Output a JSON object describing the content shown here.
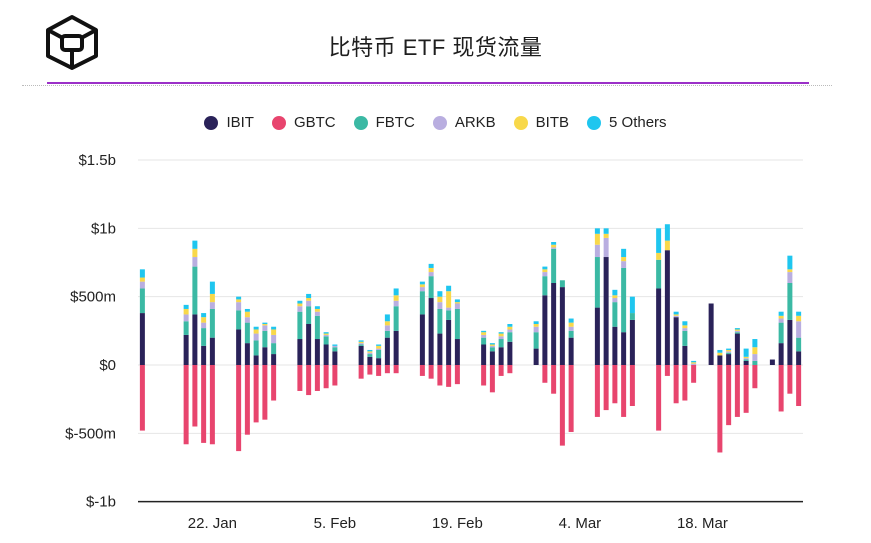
{
  "header": {
    "title": "比特币 ETF 现货流量",
    "logo_icon": "cube-logo-icon"
  },
  "colors": {
    "IBIT": "#2a2259",
    "GBTC": "#e8456e",
    "FBTC": "#3bb9a4",
    "ARKB": "#b9aee0",
    "BITB": "#f8d84a",
    "5 Others": "#1fc6ef",
    "accent_rule": "#9b30c8"
  },
  "chart_data": {
    "type": "bar",
    "stacked": true,
    "title": "比特币 ETF 现货流量",
    "unit": "USD",
    "ylim": [
      -1000000000,
      1500000000
    ],
    "y_ticks": [
      {
        "value": 1500000000,
        "label": "$1.5b"
      },
      {
        "value": 1000000000,
        "label": "$1b"
      },
      {
        "value": 500000000,
        "label": "$500m"
      },
      {
        "value": 0,
        "label": "$0"
      },
      {
        "value": -500000000,
        "label": "$-500m"
      },
      {
        "value": -1000000000,
        "label": "$-1b"
      }
    ],
    "x_ticks": [
      {
        "label": "22. Jan",
        "at": 8
      },
      {
        "label": "5. Feb",
        "at": 22
      },
      {
        "label": "19. Feb",
        "at": 36
      },
      {
        "label": "4. Mar",
        "at": 50
      },
      {
        "label": "18. Mar",
        "at": 64
      }
    ],
    "grid": true,
    "legend_position": "top",
    "series": [
      {
        "name": "IBIT",
        "values": [
          380,
          null,
          null,
          null,
          null,
          220,
          370,
          140,
          200,
          null,
          null,
          260,
          160,
          70,
          130,
          80,
          null,
          null,
          190,
          300,
          190,
          150,
          100,
          null,
          null,
          140,
          60,
          50,
          200,
          250,
          null,
          null,
          370,
          490,
          230,
          330,
          190,
          null,
          null,
          150,
          100,
          130,
          170,
          null,
          null,
          120,
          510,
          600,
          570,
          200,
          null,
          null,
          420,
          790,
          280,
          240,
          330,
          null,
          null,
          560,
          840,
          350,
          140,
          null,
          null,
          450,
          70,
          80,
          230,
          30,
          null,
          null,
          40,
          160,
          330,
          100
        ]
      },
      {
        "name": "GBTC",
        "values": [
          -480,
          null,
          null,
          null,
          null,
          -580,
          -450,
          -570,
          -580,
          null,
          null,
          -630,
          -510,
          -420,
          -400,
          -260,
          null,
          null,
          -190,
          -220,
          -190,
          -170,
          -150,
          null,
          null,
          -100,
          -70,
          -80,
          -60,
          -60,
          null,
          null,
          -80,
          -100,
          -150,
          -160,
          -140,
          null,
          null,
          -150,
          -200,
          -80,
          -60,
          null,
          null,
          0,
          -130,
          -210,
          -590,
          -490,
          null,
          null,
          -380,
          -330,
          -280,
          -380,
          -300,
          null,
          null,
          -480,
          -80,
          -280,
          -260,
          -130,
          null,
          null,
          -640,
          -440,
          -380,
          -350,
          -170,
          null,
          null,
          -340,
          -210,
          -300,
          -100
        ]
      },
      {
        "name": "FBTC",
        "values": [
          180,
          null,
          null,
          null,
          null,
          100,
          350,
          130,
          210,
          null,
          null,
          140,
          150,
          110,
          120,
          80,
          null,
          null,
          200,
          130,
          170,
          60,
          30,
          null,
          null,
          10,
          20,
          60,
          50,
          180,
          null,
          null,
          170,
          160,
          180,
          70,
          220,
          null,
          null,
          50,
          30,
          60,
          70,
          null,
          null,
          120,
          140,
          250,
          50,
          50,
          null,
          null,
          370,
          0,
          180,
          470,
          50,
          null,
          null,
          210,
          0,
          0,
          110,
          0,
          null,
          null,
          0,
          10,
          10,
          10,
          30,
          null,
          null,
          150,
          270,
          100,
          60
        ]
      },
      {
        "name": "ARKB",
        "values": [
          50,
          null,
          null,
          null,
          null,
          50,
          70,
          40,
          50,
          null,
          null,
          60,
          40,
          50,
          40,
          60,
          null,
          null,
          40,
          40,
          30,
          10,
          10,
          null,
          null,
          10,
          10,
          10,
          40,
          40,
          null,
          null,
          30,
          30,
          50,
          20,
          40,
          null,
          null,
          20,
          10,
          20,
          20,
          null,
          null,
          40,
          30,
          10,
          0,
          30,
          null,
          null,
          90,
          140,
          30,
          50,
          0,
          null,
          null,
          0,
          0,
          10,
          20,
          10,
          null,
          null,
          0,
          10,
          10,
          10,
          50,
          null,
          null,
          30,
          80,
          120,
          60
        ]
      },
      {
        "name": "BITB",
        "values": [
          30,
          null,
          null,
          null,
          null,
          40,
          60,
          40,
          60,
          null,
          null,
          20,
          40,
          30,
          10,
          40,
          null,
          null,
          20,
          20,
          20,
          10,
          0,
          null,
          null,
          10,
          10,
          20,
          30,
          40,
          null,
          null,
          20,
          30,
          40,
          120,
          10,
          null,
          null,
          20,
          10,
          20,
          20,
          null,
          null,
          20,
          20,
          20,
          0,
          30,
          null,
          null,
          80,
          30,
          20,
          30,
          0,
          null,
          null,
          50,
          70,
          10,
          20,
          10,
          null,
          null,
          20,
          10,
          10,
          10,
          50,
          null,
          null,
          20,
          20,
          40,
          60
        ]
      },
      {
        "name": "5 Others",
        "values": [
          60,
          null,
          null,
          null,
          null,
          30,
          60,
          30,
          90,
          null,
          null,
          20,
          20,
          20,
          10,
          20,
          null,
          null,
          20,
          30,
          20,
          10,
          10,
          null,
          null,
          10,
          10,
          10,
          50,
          50,
          null,
          null,
          20,
          30,
          40,
          40,
          20,
          null,
          null,
          10,
          10,
          10,
          20,
          null,
          null,
          20,
          20,
          20,
          0,
          30,
          null,
          null,
          40,
          40,
          40,
          60,
          120,
          null,
          null,
          180,
          120,
          20,
          30,
          10,
          null,
          null,
          20,
          10,
          10,
          60,
          60,
          null,
          null,
          30,
          100,
          30,
          40
        ]
      }
    ],
    "value_unit": "million USD"
  }
}
